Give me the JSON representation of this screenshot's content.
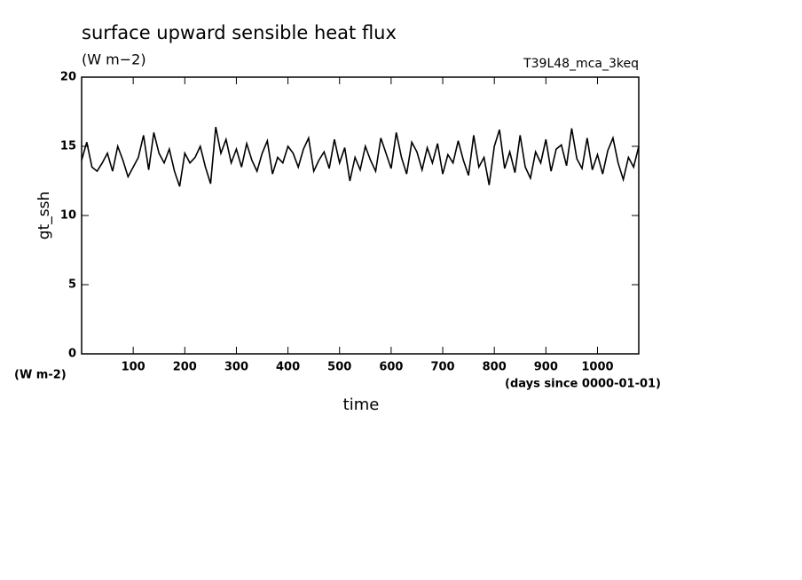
{
  "chart_data": {
    "type": "line",
    "title": "surface upward sensible heat flux",
    "subtitle": "(W m−2)",
    "experiment": "T39L48_mca_3keq",
    "y_label": "gt_ssh",
    "x_label": "time",
    "y_units": "(W m-2)",
    "x_units": "(days since 0000-01-01)",
    "color": "#000000",
    "x": [
      0,
      10,
      20,
      30,
      40,
      50,
      60,
      70,
      80,
      90,
      100,
      110,
      120,
      130,
      140,
      150,
      160,
      170,
      180,
      190,
      200,
      210,
      220,
      230,
      240,
      250,
      260,
      270,
      280,
      290,
      300,
      310,
      320,
      330,
      340,
      350,
      360,
      370,
      380,
      390,
      400,
      410,
      420,
      430,
      440,
      450,
      460,
      470,
      480,
      490,
      500,
      510,
      520,
      530,
      540,
      550,
      560,
      570,
      580,
      590,
      600,
      610,
      620,
      630,
      640,
      650,
      660,
      670,
      680,
      690,
      700,
      710,
      720,
      730,
      740,
      750,
      760,
      770,
      780,
      790,
      800,
      810,
      820,
      830,
      840,
      850,
      860,
      870,
      880,
      890,
      900,
      910,
      920,
      930,
      940,
      950,
      960,
      970,
      980,
      990,
      1000,
      1010,
      1020,
      1030,
      1040,
      1050,
      1060,
      1070,
      1080
    ],
    "values": [
      14,
      15.3,
      13.5,
      13.2,
      13.8,
      14.5,
      13.2,
      15.0,
      14.0,
      12.8,
      13.5,
      14.2,
      15.8,
      13.3,
      16.0,
      14.5,
      13.8,
      14.8,
      13.2,
      12.1,
      14.5,
      13.8,
      14.2,
      15.0,
      13.5,
      12.3,
      16.4,
      14.5,
      15.5,
      13.8,
      14.8,
      13.5,
      15.2,
      14.0,
      13.2,
      14.5,
      15.4,
      13.0,
      14.2,
      13.8,
      15.0,
      14.5,
      13.5,
      14.8,
      15.6,
      13.2,
      14.0,
      14.6,
      13.4,
      15.5,
      13.8,
      14.9,
      12.5,
      14.2,
      13.3,
      15.0,
      14.0,
      13.2,
      15.6,
      14.5,
      13.4,
      16.0,
      14.2,
      13.0,
      15.3,
      14.6,
      13.3,
      14.9,
      13.8,
      15.2,
      13.0,
      14.4,
      13.8,
      15.4,
      14.0,
      12.9,
      15.8,
      13.5,
      14.2,
      12.2,
      15.0,
      16.2,
      13.4,
      14.6,
      13.1,
      15.8,
      13.5,
      12.7,
      14.6,
      13.8,
      15.5,
      13.2,
      14.8,
      15.1,
      13.6,
      16.3,
      14.1,
      13.4,
      15.6,
      13.3,
      14.4,
      13.0,
      14.7,
      15.6,
      13.8,
      12.6,
      14.2,
      13.5,
      15.0
    ],
    "xlim": [
      0,
      1080
    ],
    "ylim": [
      0,
      20
    ],
    "xticks": [
      100,
      200,
      300,
      400,
      500,
      600,
      700,
      800,
      900,
      1000
    ],
    "yticks": [
      0,
      5,
      10,
      15,
      20
    ]
  }
}
